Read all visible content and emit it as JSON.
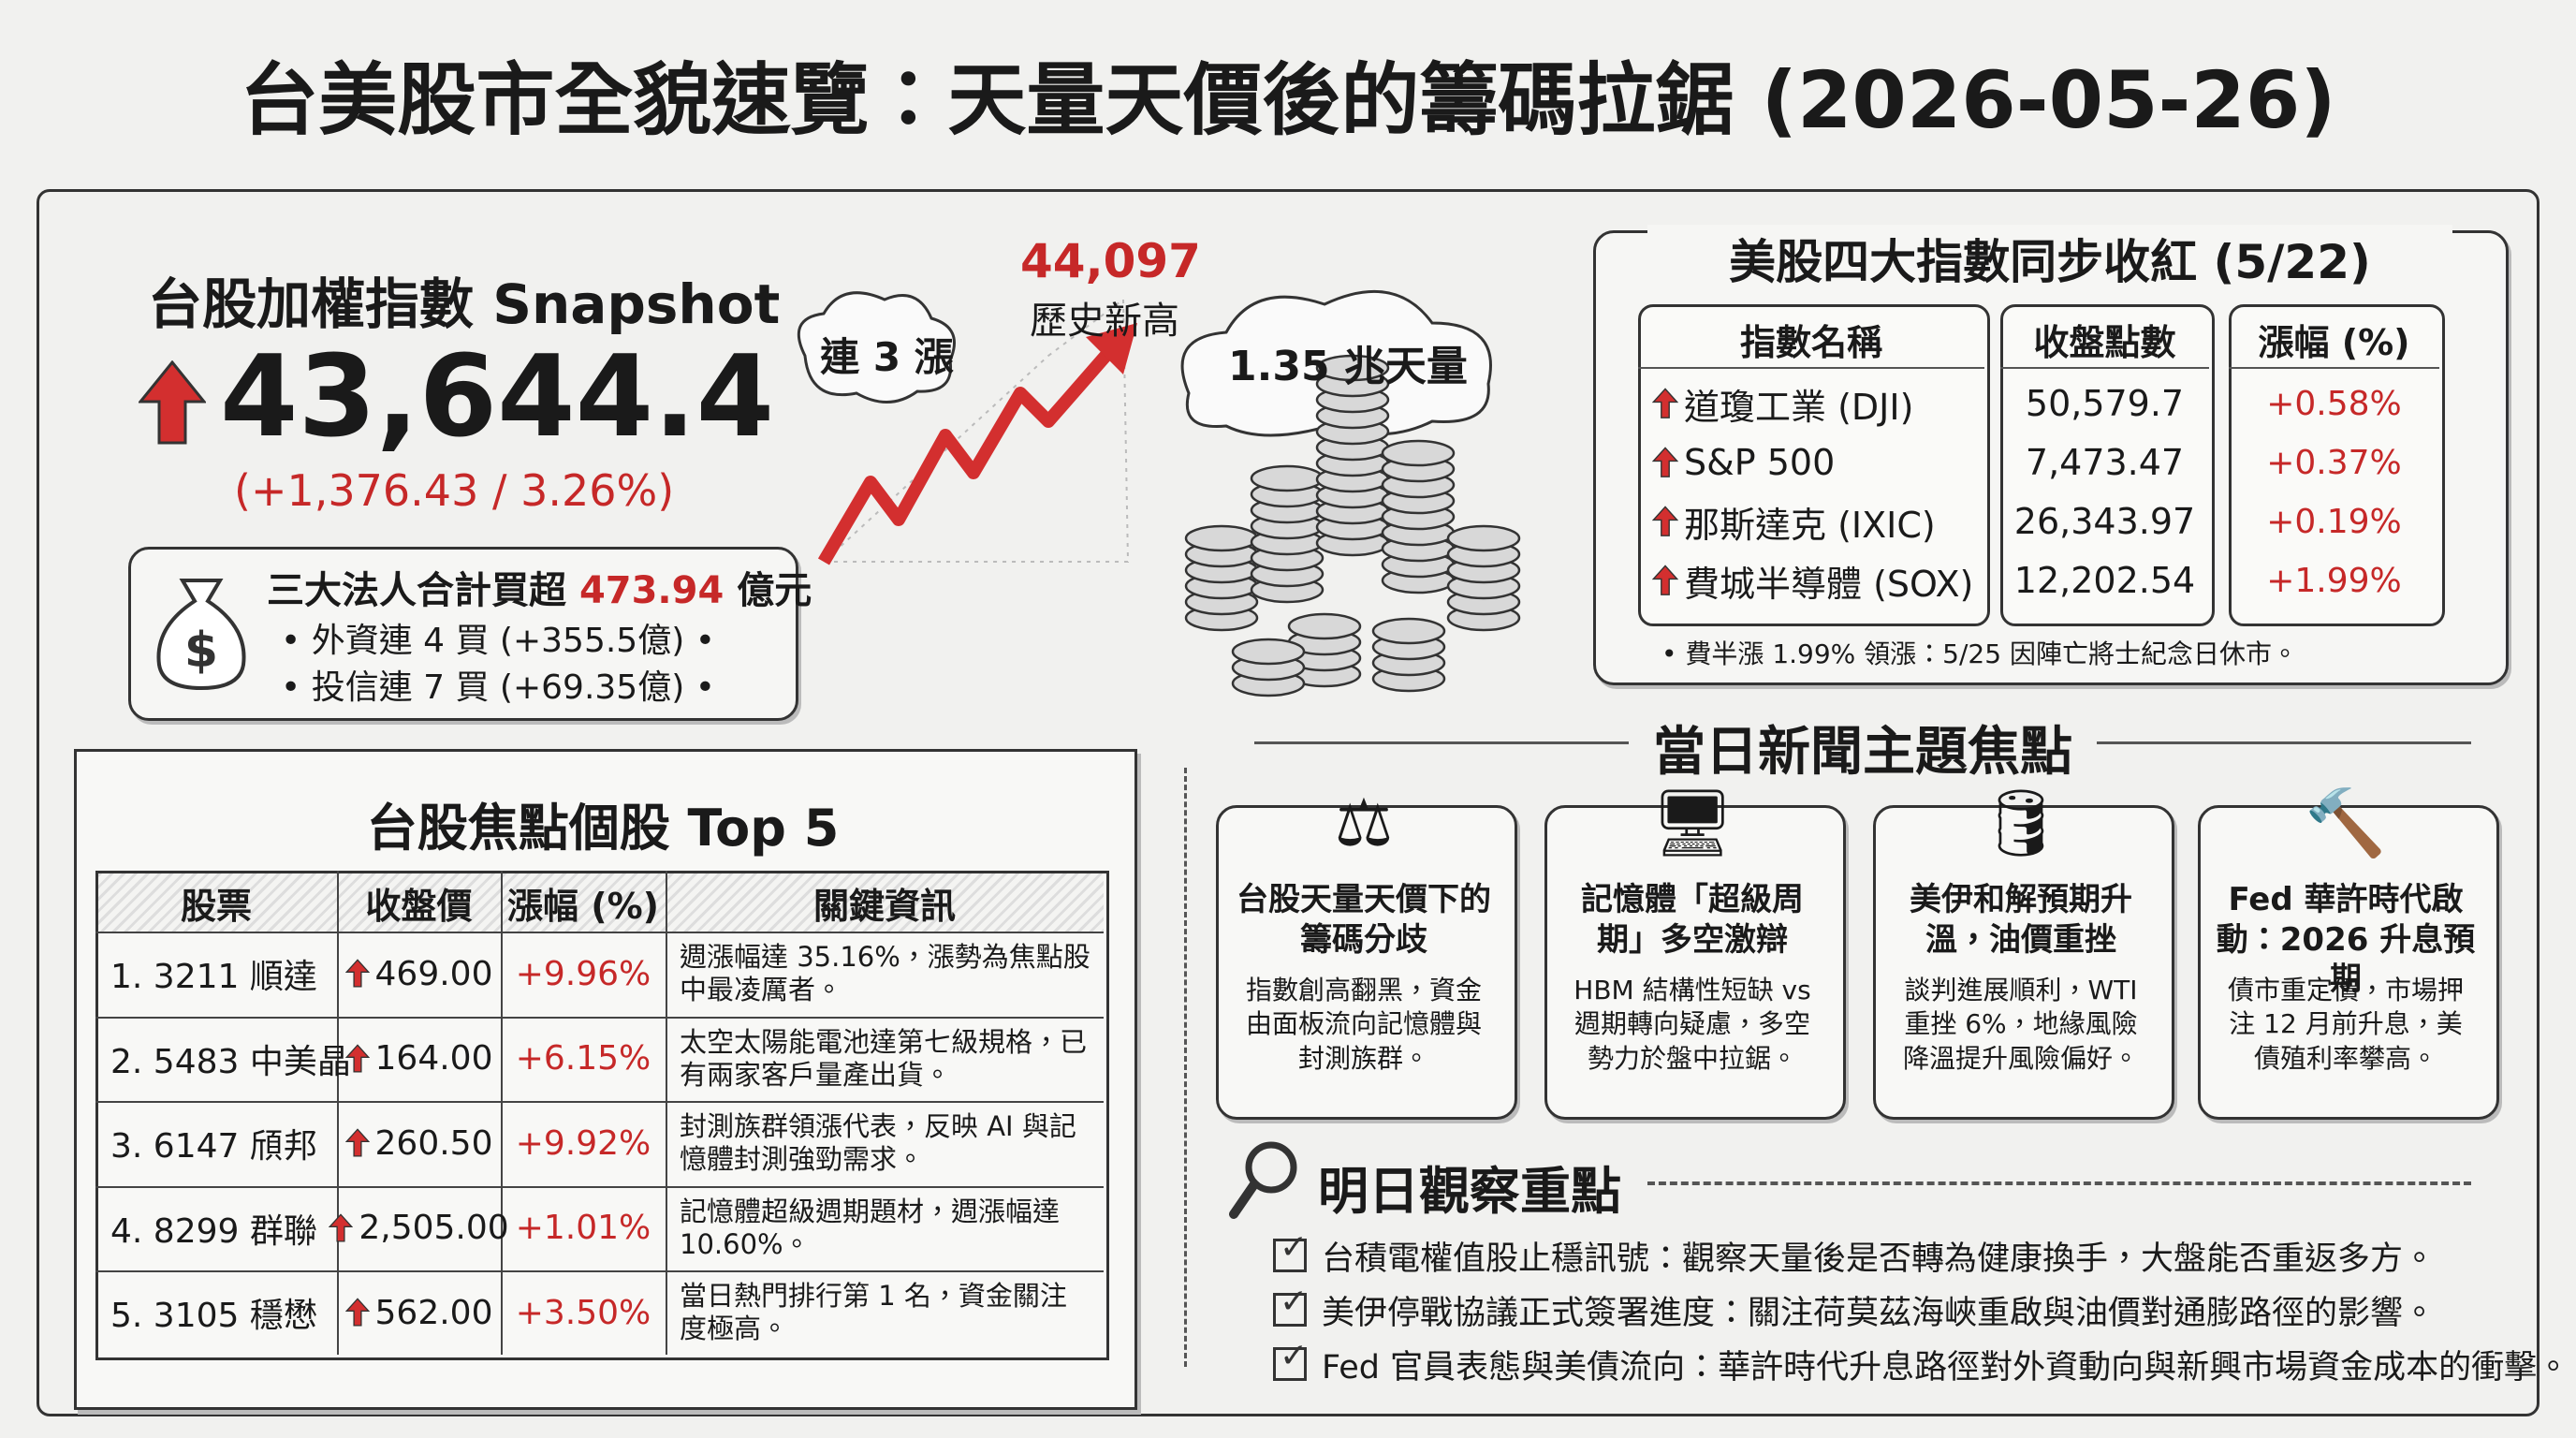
{
  "header": {
    "title": "台美股市全貌速覽：天量天價後的籌碼拉鋸 (2026-05-26)"
  },
  "snapshot": {
    "title": "台股加權指數 Snapshot",
    "index_value": "43,644.4",
    "change": "(+1,376.43 / 3.26%)",
    "institutional": {
      "label": "三大法人合計買超",
      "amount": "473.94",
      "unit": "億元"
    },
    "bullets": [
      "外資連 4 買 (+355.5億)",
      "投信連 7 買 (+69.35億)"
    ]
  },
  "trend": {
    "streak": "連 3 漲",
    "record_value": "44,097",
    "record_label": "歷史新高",
    "volume": "1.35 兆天量"
  },
  "us_indices": {
    "title": "美股四大指數同步收紅 (5/22)",
    "columns": [
      "指數名稱",
      "收盤點數",
      "漲幅 (%)"
    ],
    "rows": [
      [
        "道瓊工業 (DJI)",
        "50,579.7",
        "+0.58%"
      ],
      [
        "S&P 500",
        "7,473.47",
        "+0.37%"
      ],
      [
        "那斯達克 (IXIC)",
        "26,343.97",
        "+0.19%"
      ],
      [
        "費城半導體 (SOX)",
        "12,202.54",
        "+1.99%"
      ]
    ],
    "note": "費半漲 1.99% 領漲：5/25 因陣亡將士紀念日休市。"
  },
  "top_stocks": {
    "title": "台股焦點個股 Top 5",
    "columns": [
      "股票",
      "收盤價",
      "漲幅 (%)",
      "關鍵資訊"
    ],
    "rows": [
      [
        "1. 3211 順達",
        "469.00",
        "+9.96%",
        "週漲幅達 35.16%，漲勢為焦點股中最凌厲者。"
      ],
      [
        "2. 5483 中美晶",
        "164.00",
        "+6.15%",
        "太空太陽能電池達第七級規格，已有兩家客戶量產出貨。"
      ],
      [
        "3. 6147 頎邦",
        "260.50",
        "+9.92%",
        "封測族群領漲代表，反映 AI 與記憶體封測強勁需求。"
      ],
      [
        "4. 8299 群聯",
        "2,505.00",
        "+1.01%",
        "記憶體超級週期題材，週漲幅達 10.60%。"
      ],
      [
        "5. 3105 穩懋",
        "562.00",
        "+3.50%",
        "當日熱門排行第 1 名，資金關注度極高。"
      ]
    ]
  },
  "news": {
    "title": "當日新聞主題焦點",
    "cards": [
      {
        "title": "台股天量天價下的籌碼分歧",
        "body": "指數創高翻黑，資金由面板流向記憶體與封測族群。"
      },
      {
        "title": "記憶體「超級周期」多空激辯",
        "body": "HBM 結構性短缺 vs 週期轉向疑慮，多空勢力於盤中拉鋸。"
      },
      {
        "title": "美伊和解預期升溫，油價重挫",
        "body": "談判進展順利，WTI 重挫 6%，地緣風險降溫提升風險偏好。"
      },
      {
        "title": "Fed 華許時代啟動：2026 升息預期",
        "body": "債市重定價，市場押注 12 月前升息，美債殖利率攀高。"
      }
    ]
  },
  "watchlist": {
    "title": "明日觀察重點",
    "items": [
      "台積電權值股止穩訊號：觀察天量後是否轉為健康換手，大盤能否重返多方。",
      "美伊停戰協議正式簽署進度：關注荷莫茲海峽重啟與油價對通膨路徑的影響。",
      "Fed 官員表態與美債流向：華許時代升息路徑對外資動向與新興市場資金成本的衝擊。"
    ]
  }
}
